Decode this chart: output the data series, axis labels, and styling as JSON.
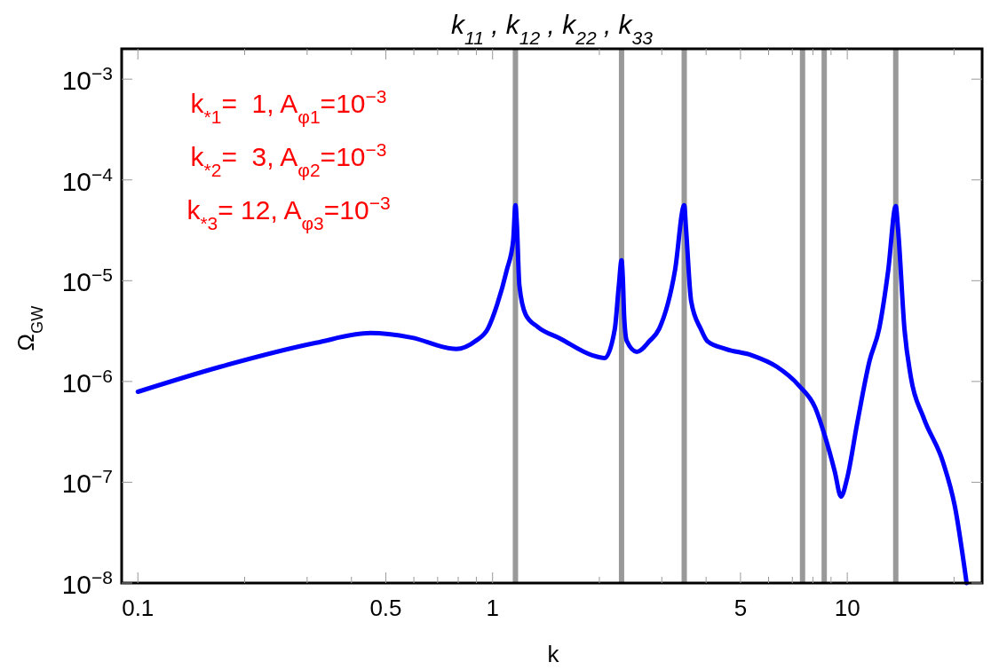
{
  "chart_data": {
    "type": "line",
    "title": "k$_{11}$ , k$_{12}$ , k$_{22}$ , k$_{33}$",
    "xlabel": "k",
    "ylabel": "Ω$_{GW}$",
    "annotations": [
      "k$_{*1}$=  1, A$_{φ1}$=10$^{−3}$",
      "k$_{*2}$=  3, A$_{φ2}$=10$^{−3}$",
      "k$_{*3}$= 12, A$_{φ3}$=10$^{−3}$"
    ],
    "log": "xy",
    "grid": false,
    "line_style": "solid",
    "marker": "none",
    "xlim": [
      0.09,
      24
    ],
    "ylim": [
      1e-08,
      0.002
    ],
    "xticks": [
      0.1,
      {
        "value": 0.2,
        "label": null
      },
      {
        "value": 0.3,
        "label": null
      },
      {
        "value": 0.4,
        "label": null
      },
      0.5,
      {
        "value": 0.6,
        "label": null
      },
      {
        "value": 0.7,
        "label": null
      },
      {
        "value": 0.8,
        "label": null
      },
      {
        "value": 0.9,
        "label": null
      },
      1,
      {
        "value": 2,
        "label": null
      },
      {
        "value": 3,
        "label": null
      },
      {
        "value": 4,
        "label": null
      },
      5,
      {
        "value": 6,
        "label": null
      },
      {
        "value": 7,
        "label": null
      },
      {
        "value": 8,
        "label": null
      },
      {
        "value": 9,
        "label": null
      },
      10,
      {
        "value": 20,
        "label": null
      }
    ],
    "yticks": [
      {
        "value": 1e-08,
        "label": "10$^{−8}$"
      },
      {
        "value": 1e-07,
        "label": "10$^{−7}$"
      },
      {
        "value": 1e-06,
        "label": "10$^{−6}$"
      },
      {
        "value": 1e-05,
        "label": "10$^{−5}$"
      },
      {
        "value": 0.0001,
        "label": "10$^{−4}$"
      },
      {
        "value": 0.001,
        "label": "10$^{−3}$"
      }
    ],
    "ref_lines": [
      {
        "axis": "x",
        "value": 1.16,
        "color": "#999999"
      },
      {
        "axis": "x",
        "value": 2.31,
        "color": "#999999"
      },
      {
        "axis": "x",
        "value": 3.47,
        "color": "#999999"
      },
      {
        "axis": "x",
        "value": 7.48,
        "color": "#999999"
      },
      {
        "axis": "x",
        "value": 8.61,
        "color": "#999999"
      },
      {
        "axis": "x",
        "value": 13.7,
        "color": "#999999"
      }
    ],
    "series": [
      {
        "color": "#0000ff",
        "x": [
          0.1,
          0.171,
          0.318,
          0.453,
          0.59,
          0.789,
          0.895,
          0.97,
          1.03,
          1.097,
          1.143,
          1.16,
          1.17,
          1.19,
          1.24,
          1.34,
          1.55,
          1.91,
          2.07,
          2.21,
          2.27,
          2.31,
          2.33,
          2.35,
          2.39,
          2.55,
          2.77,
          2.95,
          3.27,
          3.47,
          3.51,
          3.63,
          3.87,
          4.03,
          4.55,
          5.38,
          6.33,
          7.31,
          8.12,
          8.65,
          9.22,
          9.6,
          10.0,
          10.66,
          11.56,
          12.3,
          13.05,
          13.7,
          13.9,
          14.5,
          15.1,
          16.4,
          18.6,
          20.1,
          21.7
        ],
        "values": [
          7.9e-07,
          1.4e-06,
          2.42e-06,
          3.02e-06,
          2.73e-06,
          2.1e-06,
          2.52e-06,
          3.34e-06,
          5.78e-06,
          1.28e-05,
          2.49e-05,
          5.6e-05,
          3.81e-05,
          9e-06,
          4.6e-06,
          3.48e-06,
          2.67e-06,
          1.82e-06,
          1.71e-06,
          3.28e-06,
          9e-06,
          1.6e-05,
          1.04e-05,
          4.35e-06,
          2.52e-06,
          1.97e-06,
          2.52e-06,
          3.34e-06,
          1.28e-05,
          5.6e-05,
          3.31e-05,
          6.27e-06,
          3.28e-06,
          2.52e-06,
          2.1e-06,
          1.82e-06,
          1.4e-06,
          9.1e-07,
          5.5e-07,
          2.87e-07,
          1.28e-07,
          7.2e-08,
          1.11e-07,
          3.81e-07,
          1.61e-06,
          3.34e-06,
          1.28e-05,
          5.5e-05,
          3.31e-05,
          3.28e-06,
          1.12e-06,
          4.4e-07,
          1.6e-07,
          5.8e-08,
          1e-08
        ]
      }
    ]
  }
}
